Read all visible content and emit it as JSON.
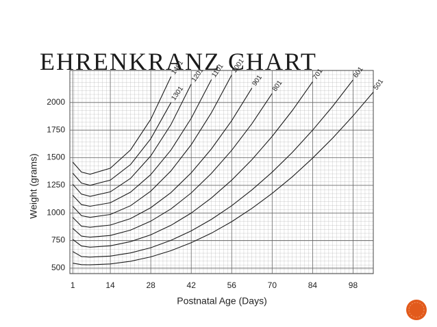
{
  "title": "EHRENKRANZ CHART",
  "chart_data": {
    "type": "line",
    "x_label": "Postnatal Age (Days)",
    "y_label": "Weight (grams)",
    "x": [
      1,
      4,
      7,
      14,
      21,
      28,
      35,
      42,
      49,
      56,
      63,
      70,
      77,
      84,
      91,
      98,
      105
    ],
    "xlim": [
      0,
      105
    ],
    "ylim": [
      450,
      2290
    ],
    "xticks": [
      1,
      14,
      28,
      42,
      56,
      70,
      84,
      98
    ],
    "yticks": [
      500,
      750,
      1000,
      1250,
      1500,
      1750,
      2000
    ],
    "grid": true,
    "series": [
      {
        "name": "1401",
        "color": "#1a1a1a",
        "values": [
          1460,
          1370,
          1350,
          1405,
          1571,
          1848,
          2235,
          null,
          null,
          null,
          null,
          null,
          null,
          null,
          null,
          null,
          null
        ]
      },
      {
        "name": "1301",
        "color": "#1a1a1a",
        "values": [
          1360,
          1270,
          1250,
          1297,
          1438,
          1672,
          2000,
          null,
          null,
          null,
          null,
          null,
          null,
          null,
          null,
          null,
          null
        ]
      },
      {
        "name": "1201",
        "color": "#1a1a1a",
        "values": [
          1260,
          1170,
          1150,
          1191,
          1313,
          1516,
          1801,
          2167,
          null,
          null,
          null,
          null,
          null,
          null,
          null,
          null,
          null
        ]
      },
      {
        "name": "1101",
        "color": "#1a1a1a",
        "values": [
          1160,
          1075,
          1060,
          1092,
          1188,
          1347,
          1570,
          1857,
          2208,
          null,
          null,
          null,
          null,
          null,
          null,
          null,
          null
        ]
      },
      {
        "name": "1001",
        "color": "#1a1a1a",
        "values": [
          1060,
          975,
          960,
          986,
          1065,
          1197,
          1381,
          1618,
          1908,
          2250,
          null,
          null,
          null,
          null,
          null,
          null,
          null
        ]
      },
      {
        "name": "901",
        "color": "#1a1a1a",
        "values": [
          960,
          880,
          870,
          890,
          949,
          1047,
          1185,
          1363,
          1580,
          1836,
          2131,
          null,
          null,
          null,
          null,
          null,
          null
        ]
      },
      {
        "name": "801",
        "color": "#1a1a1a",
        "values": [
          860,
          790,
          780,
          796,
          844,
          925,
          1037,
          1181,
          1358,
          1567,
          1808,
          2082,
          null,
          null,
          null,
          null,
          null
        ]
      },
      {
        "name": "701",
        "color": "#1a1a1a",
        "values": [
          760,
          700,
          690,
          702,
          740,
          801,
          888,
          999,
          1136,
          1297,
          1482,
          1693,
          1928,
          2188,
          null,
          null,
          null
        ]
      },
      {
        "name": "601",
        "color": "#1a1a1a",
        "values": [
          650,
          605,
          600,
          609,
          638,
          685,
          752,
          837,
          942,
          1065,
          1208,
          1369,
          1549,
          1749,
          1967,
          2205,
          null
        ]
      },
      {
        "name": "501",
        "color": "#1a1a1a",
        "values": [
          545,
          532,
          530,
          538,
          562,
          602,
          658,
          730,
          817,
          921,
          1041,
          1177,
          1328,
          1496,
          1679,
          1879,
          2094
        ]
      }
    ]
  }
}
